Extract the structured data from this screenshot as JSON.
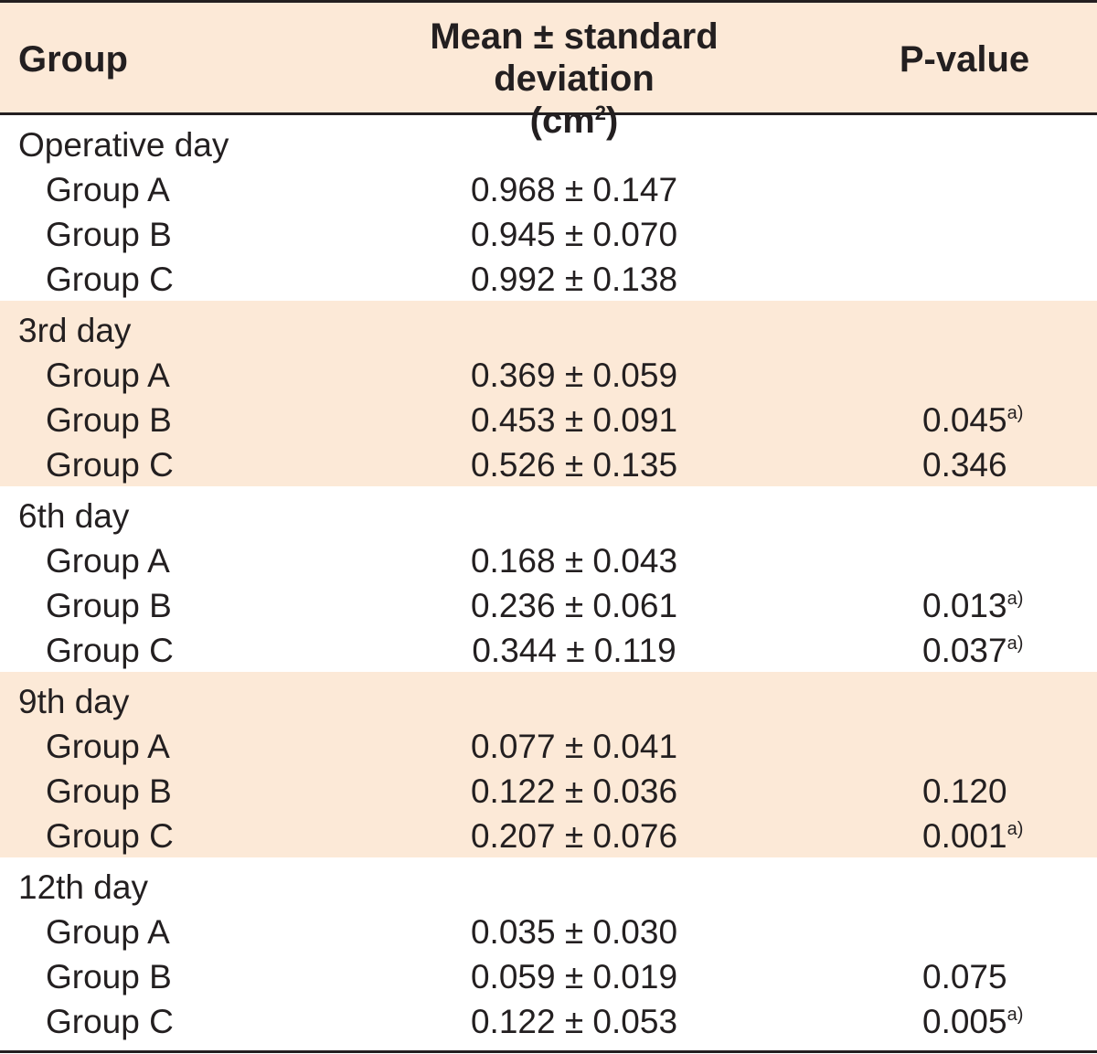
{
  "header": {
    "group": "Group",
    "mean_line1": "Mean ± standard deviation",
    "mean_line2_pre": "(cm",
    "mean_line2_sup": "2",
    "mean_line2_post": ")",
    "pvalue": "P-value"
  },
  "footnote_marker": "a)",
  "colors": {
    "shade": "#fce9d7",
    "text": "#231f20",
    "rule": "#231f20"
  },
  "sections": [
    {
      "title": "Operative day",
      "rows": [
        {
          "group": "Group A",
          "mean": "0.968 ± 0.147",
          "p": "",
          "sig": false
        },
        {
          "group": "Group B",
          "mean": "0.945 ± 0.070",
          "p": "",
          "sig": false
        },
        {
          "group": "Group C",
          "mean": "0.992 ± 0.138",
          "p": "",
          "sig": false
        }
      ]
    },
    {
      "title": "3rd day",
      "rows": [
        {
          "group": "Group A",
          "mean": "0.369 ± 0.059",
          "p": "",
          "sig": false
        },
        {
          "group": "Group B",
          "mean": "0.453 ± 0.091",
          "p": "0.045",
          "sig": true
        },
        {
          "group": "Group C",
          "mean": "0.526 ± 0.135",
          "p": "0.346",
          "sig": false
        }
      ]
    },
    {
      "title": "6th day",
      "rows": [
        {
          "group": "Group A",
          "mean": "0.168 ± 0.043",
          "p": "",
          "sig": false
        },
        {
          "group": "Group B",
          "mean": "0.236 ± 0.061",
          "p": "0.013",
          "sig": true
        },
        {
          "group": "Group C",
          "mean": "0.344 ± 0.119",
          "p": "0.037",
          "sig": true
        }
      ]
    },
    {
      "title": "9th day",
      "rows": [
        {
          "group": "Group A",
          "mean": "0.077 ± 0.041",
          "p": "",
          "sig": false
        },
        {
          "group": "Group B",
          "mean": "0.122 ± 0.036",
          "p": "0.120",
          "sig": false
        },
        {
          "group": "Group C",
          "mean": "0.207 ± 0.076",
          "p": "0.001",
          "sig": true
        }
      ]
    },
    {
      "title": "12th day",
      "rows": [
        {
          "group": "Group A",
          "mean": "0.035 ± 0.030",
          "p": "",
          "sig": false
        },
        {
          "group": "Group B",
          "mean": "0.059 ± 0.019",
          "p": "0.075",
          "sig": false
        },
        {
          "group": "Group C",
          "mean": "0.122 ± 0.053",
          "p": "0.005",
          "sig": true
        }
      ]
    }
  ]
}
